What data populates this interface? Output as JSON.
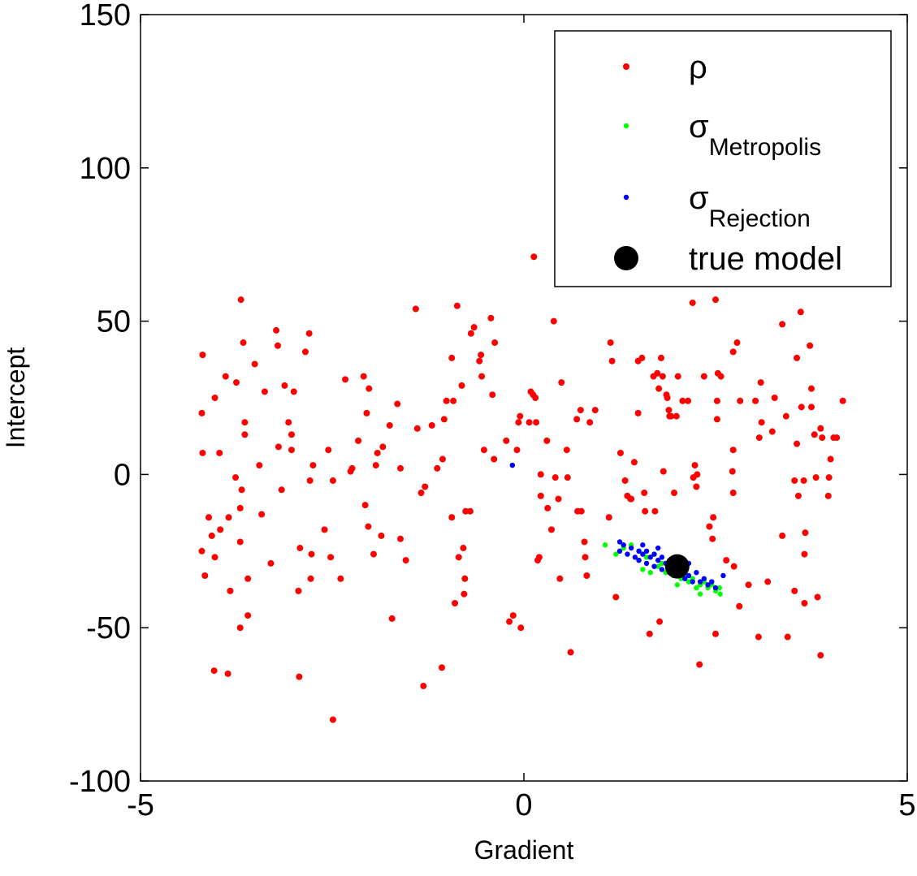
{
  "chart_data": {
    "type": "scatter",
    "xlabel": "Gradient",
    "ylabel": "Intercept",
    "xlim": [
      -5,
      5
    ],
    "ylim": [
      -100,
      150
    ],
    "xticks": [
      -5,
      0,
      5
    ],
    "yticks": [
      -100,
      -50,
      0,
      50,
      100,
      150
    ],
    "grid": false,
    "legend": "upper right",
    "series": [
      {
        "name": "ρ",
        "color": "#ff0000",
        "marker": "dot",
        "x": [
          -4.19,
          -4.2,
          -4.19,
          -4.2,
          -4.16,
          -4.11,
          -4.07,
          -4.03,
          -4.03,
          -4.04,
          -3.97,
          -3.96,
          -3.89,
          -3.85,
          -3.83,
          -3.86,
          -3.75,
          -3.76,
          -3.7,
          -3.7,
          -3.69,
          -3.66,
          -3.64,
          -3.64,
          -3.68,
          -3.7,
          -3.6,
          -3.6,
          -3.51,
          -3.45,
          -3.42,
          -3.38,
          -3.3,
          -3.23,
          -3.21,
          -3.2,
          -3.16,
          -3.12,
          -3.07,
          -3.03,
          -3.03,
          -3.0,
          -2.94,
          -2.93,
          -2.92,
          -2.85,
          -2.8,
          -2.79,
          -2.75,
          -2.78,
          -2.77,
          -2.6,
          -2.55,
          -2.52,
          -2.49,
          -2.49,
          -2.39,
          -2.33,
          -2.26,
          -2.24,
          -2.16,
          -2.09,
          -2.05,
          -2.07,
          -2.02,
          -2.03,
          -1.96,
          -1.93,
          -1.91,
          -1.86,
          -1.84,
          -1.75,
          -1.72,
          -1.65,
          -1.61,
          -1.61,
          -1.54,
          -1.41,
          -1.39,
          -1.34,
          -1.31,
          -1.29,
          -1.2,
          -1.13,
          -1.06,
          -1.07,
          -1.04,
          -1.01,
          -0.94,
          -0.94,
          -0.92,
          -0.9,
          -0.87,
          -0.85,
          -0.81,
          -0.79,
          -0.78,
          -0.77,
          -0.76,
          -0.7,
          -0.69,
          -0.65,
          -0.58,
          -0.56,
          -0.55,
          -0.52,
          -0.43,
          -0.41,
          -0.39,
          -0.38,
          -0.23,
          -0.19,
          -0.14,
          -0.09,
          -0.07,
          -0.05,
          -0.04,
          0.07,
          0.09,
          0.12,
          0.13,
          0.15,
          0.16,
          0.18,
          0.2,
          0.22,
          0.22,
          0.3,
          0.31,
          0.36,
          0.39,
          0.41,
          0.45,
          0.47,
          0.49,
          0.56,
          0.57,
          0.61,
          0.69,
          0.7,
          0.74,
          0.75,
          0.79,
          0.8,
          0.82,
          0.86,
          0.93,
          1.13,
          1.15,
          1.11,
          1.2,
          1.26,
          1.32,
          1.35,
          1.39,
          1.4,
          1.44,
          1.49,
          1.49,
          1.54,
          1.57,
          1.58,
          1.64,
          1.69,
          1.71,
          1.74,
          1.76,
          1.79,
          1.81,
          1.77,
          1.82,
          1.86,
          1.87,
          1.89,
          1.9,
          1.92,
          1.96,
          1.99,
          2.01,
          2.07,
          2.14,
          2.2,
          2.21,
          2.23,
          2.25,
          2.26,
          2.29,
          2.35,
          2.42,
          2.46,
          2.47,
          2.5,
          2.5,
          2.52,
          2.52,
          2.53,
          2.57,
          2.64,
          2.72,
          2.73,
          2.73,
          2.73,
          2.74,
          2.78,
          2.81,
          2.82,
          2.93,
          3.02,
          3.06,
          3.07,
          3.09,
          3.1,
          3.18,
          3.24,
          3.27,
          3.37,
          3.37,
          3.42,
          3.44,
          3.53,
          3.53,
          3.56,
          3.56,
          3.58,
          3.61,
          3.62,
          3.65,
          3.66,
          3.67,
          3.66,
          3.73,
          3.75,
          3.75,
          3.79,
          3.81,
          3.83,
          3.87,
          3.87,
          3.89,
          3.97,
          3.98,
          4.0,
          4.04,
          4.08,
          4.16
        ],
        "values": [
          39,
          20,
          7,
          -25,
          -33,
          -14,
          -20,
          25,
          -27,
          -64,
          7,
          -18,
          32,
          -14,
          -38,
          -65,
          30,
          -1,
          -22,
          -50,
          57,
          43,
          17,
          13,
          -5,
          -11,
          -34,
          -46,
          36,
          3,
          -13,
          27,
          -29,
          47,
          42,
          9,
          -5,
          29,
          17,
          13,
          8,
          27,
          -38,
          -66,
          -24,
          40,
          46,
          -2,
          3,
          -34,
          -26,
          -18,
          8,
          -27,
          -80,
          -2,
          -34,
          31,
          1,
          2,
          11,
          32,
          20,
          -10,
          28,
          -17,
          -26,
          3,
          7,
          -20,
          9,
          16,
          -47,
          23,
          2,
          -21,
          -28,
          54,
          15,
          -6,
          -69,
          -4,
          16,
          2,
          5,
          -63,
          18,
          24,
          38,
          -14,
          24,
          -42,
          55,
          -27,
          29,
          -24,
          -39,
          -34,
          -12,
          -12,
          46,
          48,
          37,
          39,
          32,
          8,
          51,
          26,
          5,
          43,
          11,
          -48,
          -46,
          8,
          17,
          19,
          -50,
          17,
          27,
          26,
          71,
          25,
          17,
          -28,
          -27,
          -7,
          0,
          11,
          -11,
          -18,
          50,
          -1,
          -8,
          -34,
          30,
          8,
          -1,
          -58,
          18,
          -12,
          21,
          -12,
          -22,
          -27,
          -33,
          17,
          21,
          43,
          37,
          -14,
          -40,
          7,
          -2,
          -7,
          -8,
          -8,
          4,
          20,
          37,
          38,
          -6,
          -12,
          -52,
          32,
          -12,
          33,
          28,
          38,
          32,
          -48,
          1,
          26,
          25,
          21,
          19,
          19,
          -6,
          19,
          32,
          24,
          24,
          56,
          -1,
          3,
          -4,
          0,
          -62,
          32,
          -17,
          -21,
          -14,
          57,
          -52,
          18,
          24,
          33,
          32,
          -28,
          1,
          8,
          -6,
          40,
          -30,
          43,
          -43,
          24,
          -36,
          24,
          -53,
          12,
          30,
          17,
          -35,
          14,
          25,
          49,
          -20,
          19,
          -53,
          -2,
          -38,
          10,
          38,
          -7,
          53,
          22,
          -2,
          -26,
          -19,
          -42,
          42,
          28,
          22,
          13,
          -1,
          -40,
          -59,
          15,
          12,
          -7,
          -1,
          5,
          12,
          12,
          24
        ]
      },
      {
        "name": "σ",
        "name_subscript": "Metropolis",
        "color": "#00ff00",
        "marker": "dot",
        "x": [
          1.06,
          1.3,
          1.4,
          1.5,
          1.5,
          1.6,
          1.7,
          1.75,
          1.8,
          1.85,
          1.9,
          1.95,
          2.0,
          2.05,
          2.1,
          2.15,
          2.2,
          2.25,
          2.3,
          2.3,
          2.35,
          2.4,
          2.45,
          2.5,
          2.55,
          2.56,
          1.55,
          1.65,
          1.2,
          2.0
        ],
        "values": [
          -23,
          -24,
          -23,
          -25,
          -28,
          -27,
          -26,
          -30,
          -29,
          -32,
          -30,
          -33,
          -31,
          -34,
          -33,
          -35,
          -34,
          -37,
          -36,
          -39,
          -35,
          -37,
          -36,
          -38,
          -37,
          -39,
          -31,
          -32,
          -26,
          -36
        ]
      },
      {
        "name": "σ",
        "name_subscript": "Rejection",
        "color": "#0000ff",
        "marker": "dot",
        "x": [
          -0.15,
          1.25,
          1.25,
          1.3,
          1.35,
          1.4,
          1.45,
          1.5,
          1.5,
          1.55,
          1.6,
          1.6,
          1.65,
          1.7,
          1.7,
          1.75,
          1.8,
          1.8,
          1.85,
          1.9,
          1.9,
          1.95,
          2.0,
          2.05,
          2.1,
          2.1,
          2.15,
          2.2,
          2.25,
          2.3,
          2.35,
          2.4,
          2.45,
          2.5,
          2.6,
          1.55,
          1.75,
          2.15
        ],
        "values": [
          3,
          -22,
          -25,
          -23,
          -26,
          -24,
          -27,
          -25,
          -28,
          -26,
          -29,
          -25,
          -27,
          -30,
          -26,
          -28,
          -31,
          -27,
          -29,
          -32,
          -28,
          -30,
          -33,
          -31,
          -34,
          -30,
          -33,
          -35,
          -32,
          -35,
          -34,
          -36,
          -35,
          -37,
          -33,
          -23,
          -24,
          -29
        ]
      },
      {
        "name": "true model",
        "color": "#000000",
        "marker": "big-dot",
        "x": [
          2
        ],
        "values": [
          -30
        ]
      }
    ]
  }
}
